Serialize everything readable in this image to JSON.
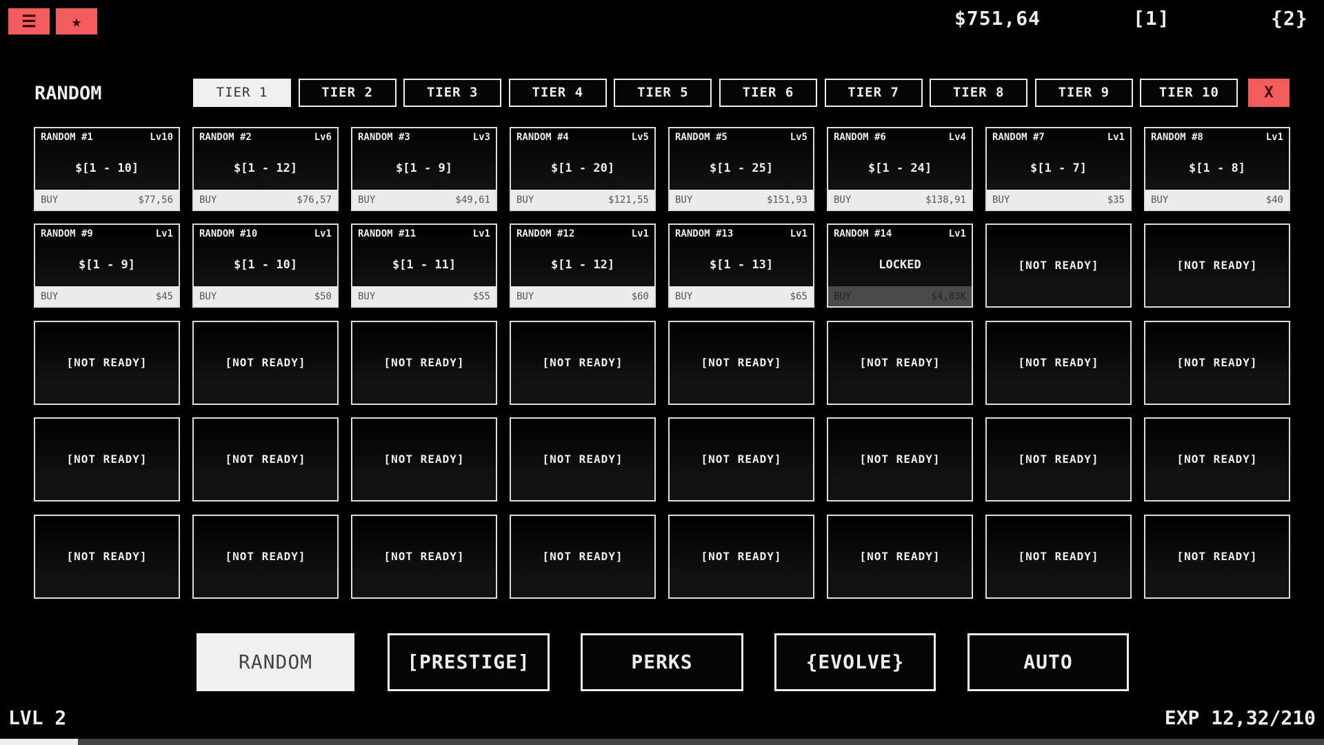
{
  "colors": {
    "accent": "#f25c5c",
    "background": "#000000",
    "foreground": "#eeeeee"
  },
  "header": {
    "menu_icon": "hamburger-icon",
    "star_icon": "star-icon",
    "money": "$751,64",
    "stat1": "[1]",
    "stat2": "{2}"
  },
  "section_title": "RANDOM",
  "tabs": [
    "TIER 1",
    "TIER 2",
    "TIER 3",
    "TIER 4",
    "TIER 5",
    "TIER 6",
    "TIER 7",
    "TIER 8",
    "TIER 9",
    "TIER 10"
  ],
  "active_tab": 0,
  "close_label": "X",
  "generators": [
    {
      "name": "RANDOM #1",
      "level": "Lv10",
      "range": "$[1 - 10]",
      "buy": "BUY",
      "cost": "$77,56"
    },
    {
      "name": "RANDOM #2",
      "level": "Lv6",
      "range": "$[1 - 12]",
      "buy": "BUY",
      "cost": "$76,57"
    },
    {
      "name": "RANDOM #3",
      "level": "Lv3",
      "range": "$[1 - 9]",
      "buy": "BUY",
      "cost": "$49,61"
    },
    {
      "name": "RANDOM #4",
      "level": "Lv5",
      "range": "$[1 - 20]",
      "buy": "BUY",
      "cost": "$121,55"
    },
    {
      "name": "RANDOM #5",
      "level": "Lv5",
      "range": "$[1 - 25]",
      "buy": "BUY",
      "cost": "$151,93"
    },
    {
      "name": "RANDOM #6",
      "level": "Lv4",
      "range": "$[1 - 24]",
      "buy": "BUY",
      "cost": "$138,91"
    },
    {
      "name": "RANDOM #7",
      "level": "Lv1",
      "range": "$[1 - 7]",
      "buy": "BUY",
      "cost": "$35"
    },
    {
      "name": "RANDOM #8",
      "level": "Lv1",
      "range": "$[1 - 8]",
      "buy": "BUY",
      "cost": "$40"
    },
    {
      "name": "RANDOM #9",
      "level": "Lv1",
      "range": "$[1 - 9]",
      "buy": "BUY",
      "cost": "$45"
    },
    {
      "name": "RANDOM #10",
      "level": "Lv1",
      "range": "$[1 - 10]",
      "buy": "BUY",
      "cost": "$50"
    },
    {
      "name": "RANDOM #11",
      "level": "Lv1",
      "range": "$[1 - 11]",
      "buy": "BUY",
      "cost": "$55"
    },
    {
      "name": "RANDOM #12",
      "level": "Lv1",
      "range": "$[1 - 12]",
      "buy": "BUY",
      "cost": "$60"
    },
    {
      "name": "RANDOM #13",
      "level": "Lv1",
      "range": "$[1 - 13]",
      "buy": "BUY",
      "cost": "$65"
    },
    {
      "name": "RANDOM #14",
      "level": "Lv1",
      "range": "LOCKED",
      "buy": "BUY",
      "cost": "$4,83K",
      "locked": true
    }
  ],
  "not_ready_label": "[NOT READY]",
  "slot_count": 40,
  "nav": [
    "RANDOM",
    "[PRESTIGE]",
    "PERKS",
    "{EVOLVE}",
    "AUTO"
  ],
  "active_nav": 0,
  "footer": {
    "level": "LVL 2",
    "exp": "EXP 12,32/210",
    "exp_progress": 0.0587
  }
}
